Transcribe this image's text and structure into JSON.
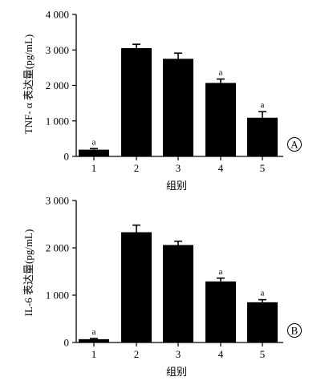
{
  "chart_data": [
    {
      "type": "bar",
      "panel_label": "A",
      "ylabel": "TNF- α 表达量(pg/mL)",
      "xlabel": "组别",
      "categories": [
        "1",
        "2",
        "3",
        "4",
        "5"
      ],
      "values": [
        190,
        3050,
        2750,
        2070,
        1090
      ],
      "errors": [
        30,
        110,
        160,
        110,
        170
      ],
      "significance": [
        "a",
        "",
        "",
        "a",
        "a"
      ],
      "ylim": [
        0,
        4000
      ],
      "yticks": [
        0,
        1000,
        2000,
        3000,
        4000
      ],
      "ytick_labels": [
        "0",
        "1 000",
        "2 000",
        "3 000",
        "4 000"
      ]
    },
    {
      "type": "bar",
      "panel_label": "B",
      "ylabel": "IL-6 表达量(pg/mL)",
      "xlabel": "组别",
      "categories": [
        "1",
        "2",
        "3",
        "4",
        "5"
      ],
      "values": [
        70,
        2330,
        2060,
        1290,
        850
      ],
      "errors": [
        15,
        150,
        80,
        70,
        55
      ],
      "significance": [
        "a",
        "",
        "",
        "a",
        "a"
      ],
      "ylim": [
        0,
        3000
      ],
      "yticks": [
        0,
        1000,
        2000,
        3000
      ],
      "ytick_labels": [
        "0",
        "1 000",
        "2 000",
        "3 000"
      ]
    }
  ],
  "colors": {
    "bar": "#000000",
    "axis": "#000000",
    "background": "#ffffff"
  }
}
